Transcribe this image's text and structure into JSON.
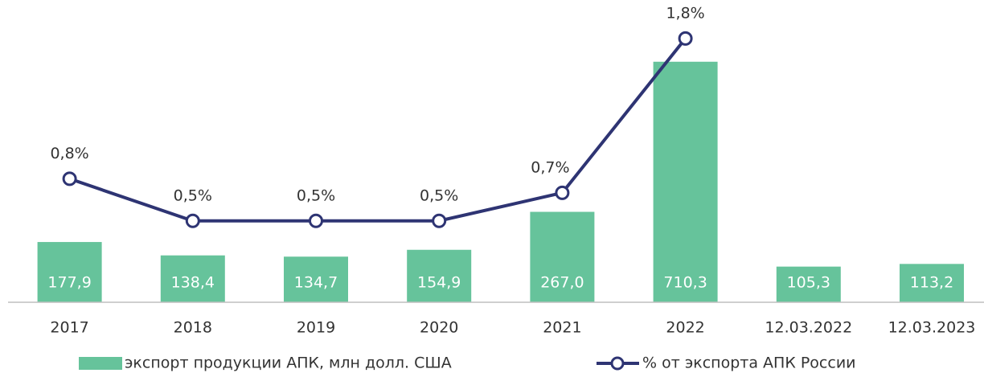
{
  "chart_data": {
    "type": "bar",
    "categories": [
      "2017",
      "2018",
      "2019",
      "2020",
      "2021",
      "2022",
      "12.03.2022",
      "12.03.2023"
    ],
    "ylim": [
      0,
      800
    ],
    "y2lim": [
      0,
      2
    ],
    "series": [
      {
        "name": "экспорт продукции АПК, млн долл. США",
        "color": "#66c39b",
        "type": "bar",
        "values": [
          177.9,
          138.4,
          134.7,
          154.9,
          267.0,
          710.3,
          105.3,
          113.2
        ],
        "value_labels": [
          "177,9",
          "138,4",
          "134,7",
          "154,9",
          "267,0",
          "710,3",
          "105,3",
          "113,2"
        ]
      },
      {
        "name": "% от экспорта АПК России",
        "color": "#2e3473",
        "type": "line",
        "axis": "y2",
        "values": [
          0.8,
          0.5,
          0.5,
          0.5,
          0.7,
          1.8,
          null,
          null
        ],
        "value_labels": [
          "0,8%",
          "0,5%",
          "0,5%",
          "0,5%",
          "0,7%",
          "1,8%",
          null,
          null
        ]
      }
    ],
    "legend": "bottom"
  }
}
